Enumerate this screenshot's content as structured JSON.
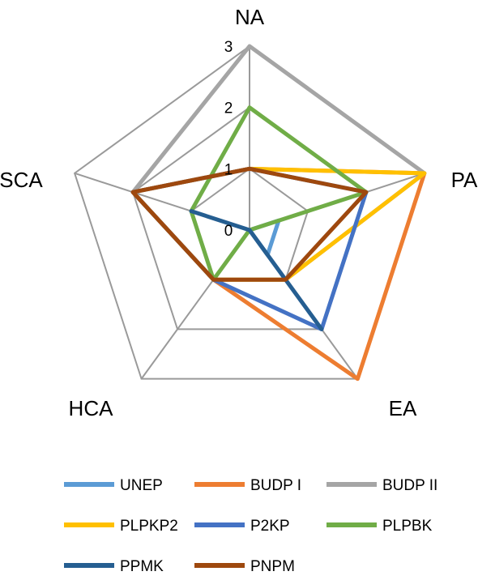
{
  "chart_data": {
    "type": "radar",
    "axes": [
      "NA",
      "PA",
      "EA",
      "HCA",
      "SCA"
    ],
    "ticks": [
      "0",
      "1",
      "2",
      "3"
    ],
    "range": [
      0,
      3
    ],
    "grid": true,
    "legend_position": "bottom",
    "series": [
      {
        "name": "UNEP",
        "color": "#5b9bd5",
        "values": [
          0,
          0.5,
          0.5,
          0,
          0
        ]
      },
      {
        "name": "BUDP I",
        "color": "#ed7d31",
        "values": [
          1,
          3,
          3,
          1,
          2
        ]
      },
      {
        "name": "BUDP II",
        "color": "#a5a5a5",
        "values": [
          3,
          3,
          1,
          1,
          2
        ]
      },
      {
        "name": "PLPKP2",
        "color": "#ffc000",
        "values": [
          1,
          3,
          1,
          1,
          2
        ]
      },
      {
        "name": "P2KP",
        "color": "#4472c4",
        "values": [
          1,
          2,
          2,
          1,
          2
        ]
      },
      {
        "name": "PLPBK",
        "color": "#70ad47",
        "values": [
          2,
          2,
          0,
          1,
          1
        ]
      },
      {
        "name": "PPMK",
        "color": "#255e91",
        "values": [
          0,
          0,
          2,
          0,
          1
        ]
      },
      {
        "name": "PNPM",
        "color": "#9e480e",
        "values": [
          1,
          2,
          1,
          1,
          2
        ]
      }
    ]
  }
}
